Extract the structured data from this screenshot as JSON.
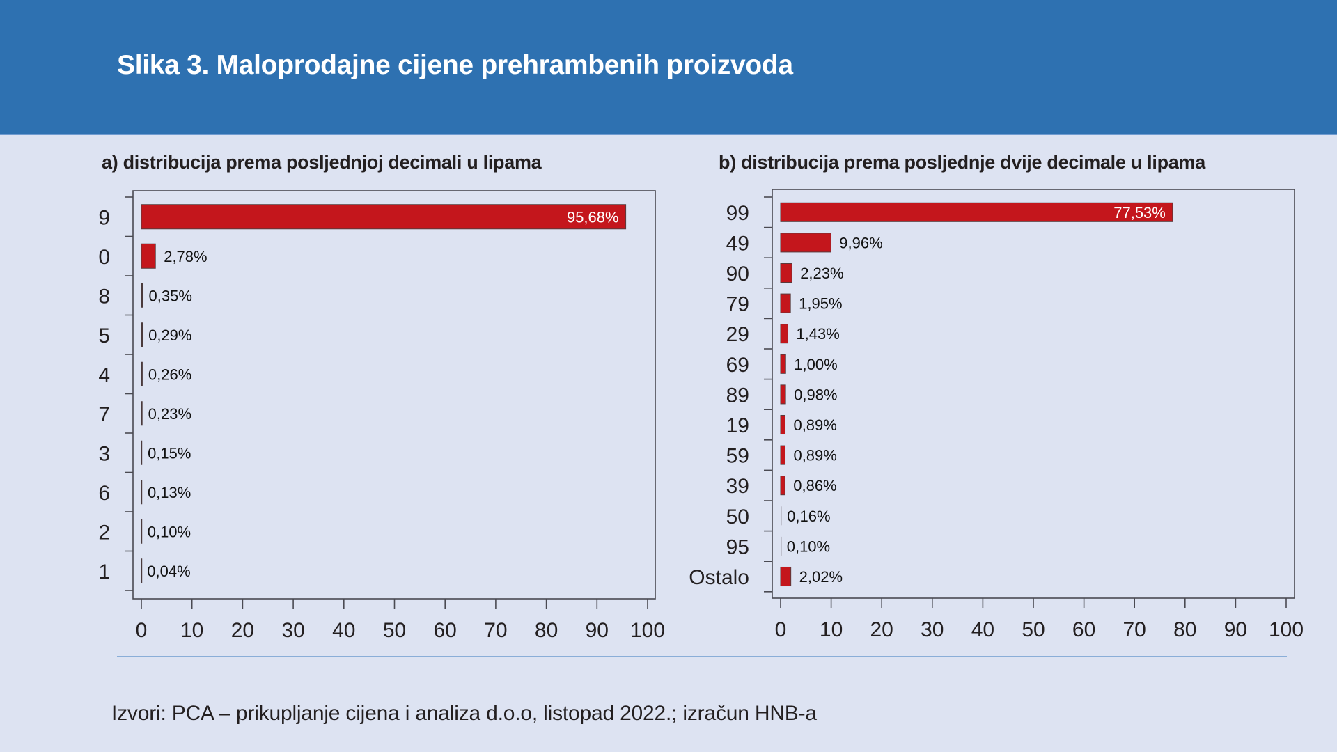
{
  "header": {
    "title": "Slika 3. Maloprodajne cijene prehrambenih proizvoda"
  },
  "footer": {
    "source": "Izvori: PCA – prikupljanje cijena i analiza d.o.o, listopad 2022.; izračun HNB-a"
  },
  "colors": {
    "header_bg": "#2e71b1",
    "page_bg": "#dde3f2",
    "bar": "#c4161c",
    "separator": "#8aaed8"
  },
  "chart_data": [
    {
      "type": "bar",
      "orientation": "horizontal",
      "title": "a) distribucija prema posljednjoj decimali u lipama",
      "xlabel": "",
      "ylabel": "",
      "xlim": [
        0,
        100
      ],
      "xticks": [
        0,
        10,
        20,
        30,
        40,
        50,
        60,
        70,
        80,
        90,
        100
      ],
      "categories": [
        "9",
        "0",
        "8",
        "5",
        "4",
        "7",
        "3",
        "6",
        "2",
        "1"
      ],
      "values": [
        95.68,
        2.78,
        0.35,
        0.29,
        0.26,
        0.23,
        0.15,
        0.13,
        0.1,
        0.04
      ],
      "labels": [
        "95,68%",
        "2,78%",
        "0,35%",
        "0,29%",
        "0,26%",
        "0,23%",
        "0,15%",
        "0,13%",
        "0,10%",
        "0,04%"
      ],
      "unit": "%",
      "grid": false,
      "legend": "none"
    },
    {
      "type": "bar",
      "orientation": "horizontal",
      "title": "b) distribucija prema posljednje dvije decimale u lipama",
      "xlabel": "",
      "ylabel": "",
      "xlim": [
        0,
        100
      ],
      "xticks": [
        0,
        10,
        20,
        30,
        40,
        50,
        60,
        70,
        80,
        90,
        100
      ],
      "categories": [
        "99",
        "49",
        "90",
        "79",
        "29",
        "69",
        "89",
        "19",
        "59",
        "39",
        "50",
        "95",
        "Ostalo"
      ],
      "values": [
        77.53,
        9.96,
        2.23,
        1.95,
        1.43,
        1.0,
        0.98,
        0.89,
        0.89,
        0.86,
        0.16,
        0.1,
        2.02
      ],
      "labels": [
        "77,53%",
        "9,96%",
        "2,23%",
        "1,95%",
        "1,43%",
        "1,00%",
        "0,98%",
        "0,89%",
        "0,89%",
        "0,86%",
        "0,16%",
        "0,10%",
        "2,02%"
      ],
      "unit": "%",
      "grid": false,
      "legend": "none"
    }
  ]
}
